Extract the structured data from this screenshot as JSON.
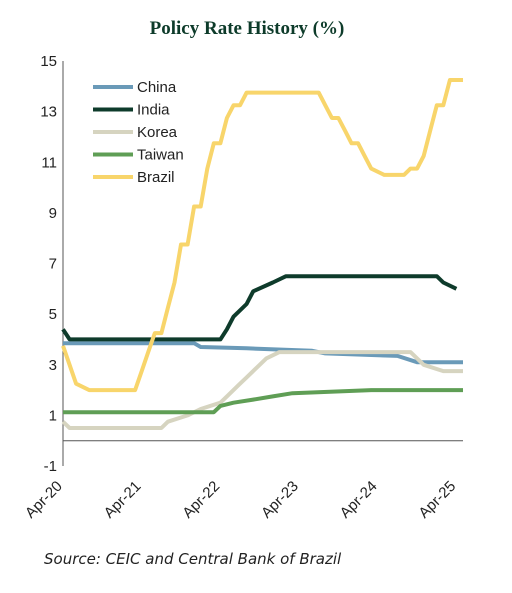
{
  "chart_data": {
    "type": "line",
    "title": "Policy Rate History (%)",
    "source": "Source: CEIC and Central Bank of Brazil",
    "ylim": [
      -1,
      15
    ],
    "yticks": [
      15,
      13,
      11,
      9,
      7,
      5,
      3,
      1,
      -1
    ],
    "xlim": [
      "2020-04",
      "2025-05"
    ],
    "xticks": [
      {
        "label": "Apr-20",
        "date": "2020-04"
      },
      {
        "label": "Apr-21",
        "date": "2021-04"
      },
      {
        "label": "Apr-22",
        "date": "2022-04"
      },
      {
        "label": "Apr-23",
        "date": "2023-04"
      },
      {
        "label": "Apr-24",
        "date": "2024-04"
      },
      {
        "label": "Apr-25",
        "date": "2025-04"
      }
    ],
    "legend": "top-left",
    "grid": false,
    "series": [
      {
        "name": "China",
        "color": "#6a9ab8",
        "points": [
          [
            "2020-04",
            3.85
          ],
          [
            "2021-12",
            3.85
          ],
          [
            "2022-01",
            3.7
          ],
          [
            "2022-08",
            3.65
          ],
          [
            "2023-06",
            3.55
          ],
          [
            "2023-08",
            3.45
          ],
          [
            "2024-07",
            3.35
          ],
          [
            "2024-10",
            3.1
          ],
          [
            "2025-05",
            3.1
          ]
        ]
      },
      {
        "name": "India",
        "color": "#0e3b2b",
        "points": [
          [
            "2020-04",
            4.4
          ],
          [
            "2020-05",
            4.0
          ],
          [
            "2022-04",
            4.0
          ],
          [
            "2022-05",
            4.4
          ],
          [
            "2022-06",
            4.9
          ],
          [
            "2022-08",
            5.4
          ],
          [
            "2022-09",
            5.9
          ],
          [
            "2022-12",
            6.25
          ],
          [
            "2023-02",
            6.5
          ],
          [
            "2025-01",
            6.5
          ],
          [
            "2025-02",
            6.25
          ],
          [
            "2025-04",
            6.0
          ]
        ]
      },
      {
        "name": "Korea",
        "color": "#d6d4c0",
        "points": [
          [
            "2020-04",
            0.75
          ],
          [
            "2020-05",
            0.5
          ],
          [
            "2021-07",
            0.5
          ],
          [
            "2021-08",
            0.75
          ],
          [
            "2021-11",
            1.0
          ],
          [
            "2022-01",
            1.25
          ],
          [
            "2022-04",
            1.5
          ],
          [
            "2022-05",
            1.75
          ],
          [
            "2022-07",
            2.25
          ],
          [
            "2022-08",
            2.5
          ],
          [
            "2022-10",
            3.0
          ],
          [
            "2022-11",
            3.25
          ],
          [
            "2023-01",
            3.5
          ],
          [
            "2024-09",
            3.5
          ],
          [
            "2024-10",
            3.25
          ],
          [
            "2024-11",
            3.0
          ],
          [
            "2025-02",
            2.75
          ],
          [
            "2025-05",
            2.75
          ]
        ]
      },
      {
        "name": "Taiwan",
        "color": "#5f9e55",
        "points": [
          [
            "2020-04",
            1.125
          ],
          [
            "2022-03",
            1.125
          ],
          [
            "2022-04",
            1.375
          ],
          [
            "2022-06",
            1.5
          ],
          [
            "2022-09",
            1.625
          ],
          [
            "2022-12",
            1.75
          ],
          [
            "2023-03",
            1.875
          ],
          [
            "2024-03",
            2.0
          ],
          [
            "2025-05",
            2.0
          ]
        ]
      },
      {
        "name": "Brazil",
        "color": "#f8d56b",
        "points": [
          [
            "2020-04",
            3.75
          ],
          [
            "2020-06",
            2.25
          ],
          [
            "2020-08",
            2.0
          ],
          [
            "2021-03",
            2.0
          ],
          [
            "2021-04",
            2.75
          ],
          [
            "2021-05",
            3.5
          ],
          [
            "2021-06",
            4.25
          ],
          [
            "2021-07",
            4.25
          ],
          [
            "2021-08",
            5.25
          ],
          [
            "2021-09",
            6.25
          ],
          [
            "2021-10",
            7.75
          ],
          [
            "2021-11",
            7.75
          ],
          [
            "2021-12",
            9.25
          ],
          [
            "2022-01",
            9.25
          ],
          [
            "2022-02",
            10.75
          ],
          [
            "2022-03",
            11.75
          ],
          [
            "2022-04",
            11.75
          ],
          [
            "2022-05",
            12.75
          ],
          [
            "2022-06",
            13.25
          ],
          [
            "2022-07",
            13.25
          ],
          [
            "2022-08",
            13.75
          ],
          [
            "2023-07",
            13.75
          ],
          [
            "2023-08",
            13.25
          ],
          [
            "2023-09",
            12.75
          ],
          [
            "2023-10",
            12.75
          ],
          [
            "2023-11",
            12.25
          ],
          [
            "2023-12",
            11.75
          ],
          [
            "2024-01",
            11.75
          ],
          [
            "2024-02",
            11.25
          ],
          [
            "2024-03",
            10.75
          ],
          [
            "2024-05",
            10.5
          ],
          [
            "2024-08",
            10.5
          ],
          [
            "2024-09",
            10.75
          ],
          [
            "2024-10",
            10.75
          ],
          [
            "2024-11",
            11.25
          ],
          [
            "2024-12",
            12.25
          ],
          [
            "2025-01",
            13.25
          ],
          [
            "2025-02",
            13.25
          ],
          [
            "2025-03",
            14.25
          ],
          [
            "2025-05",
            14.25
          ]
        ]
      }
    ]
  }
}
